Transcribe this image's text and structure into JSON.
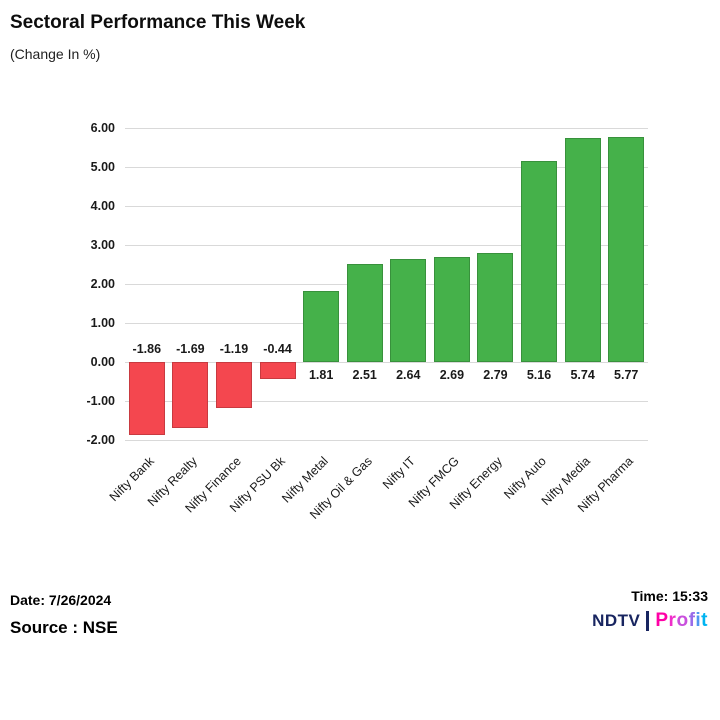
{
  "header": {
    "title": "Sectoral Performance This Week",
    "subtitle": "(Change In %)"
  },
  "chart_data": {
    "type": "bar",
    "title": "Sectoral Performance This Week",
    "subtitle": "(Change In %)",
    "categories": [
      "Nifty Bank",
      "Nifty Realty",
      "Nifty Finance",
      "Nifty PSU Bk",
      "Nifty Metal",
      "Nifty Oil & Gas",
      "Nifty IT",
      "Nifty FMCG",
      "Nifty Energy",
      "Nifty Auto",
      "Nifty Media",
      "Nifty Pharma"
    ],
    "values": [
      -1.86,
      -1.69,
      -1.19,
      -0.44,
      1.81,
      2.51,
      2.64,
      2.69,
      2.79,
      5.16,
      5.74,
      5.77
    ],
    "xlabel": "",
    "ylabel": "",
    "ylim": [
      -2,
      6
    ],
    "ytick_step": 1,
    "grid": true,
    "legend": "none",
    "colors": {
      "positive": "#45b14a",
      "negative": "#f4474f",
      "gridline": "#d9d9d9",
      "label_text": "#1a1a1a"
    }
  },
  "footer": {
    "date": "Date: 7/26/2024",
    "time": "Time: 15:33",
    "source": "Source : NSE",
    "logo": {
      "ndtv": "NDTV",
      "profit": "Profit",
      "ndtv_color": "#182560",
      "profit_letter_colors": [
        "#ff00a6",
        "#ef2ec9",
        "#c94fdd",
        "#9a6ce9",
        "#4f97ef",
        "#00b4f1"
      ]
    }
  }
}
